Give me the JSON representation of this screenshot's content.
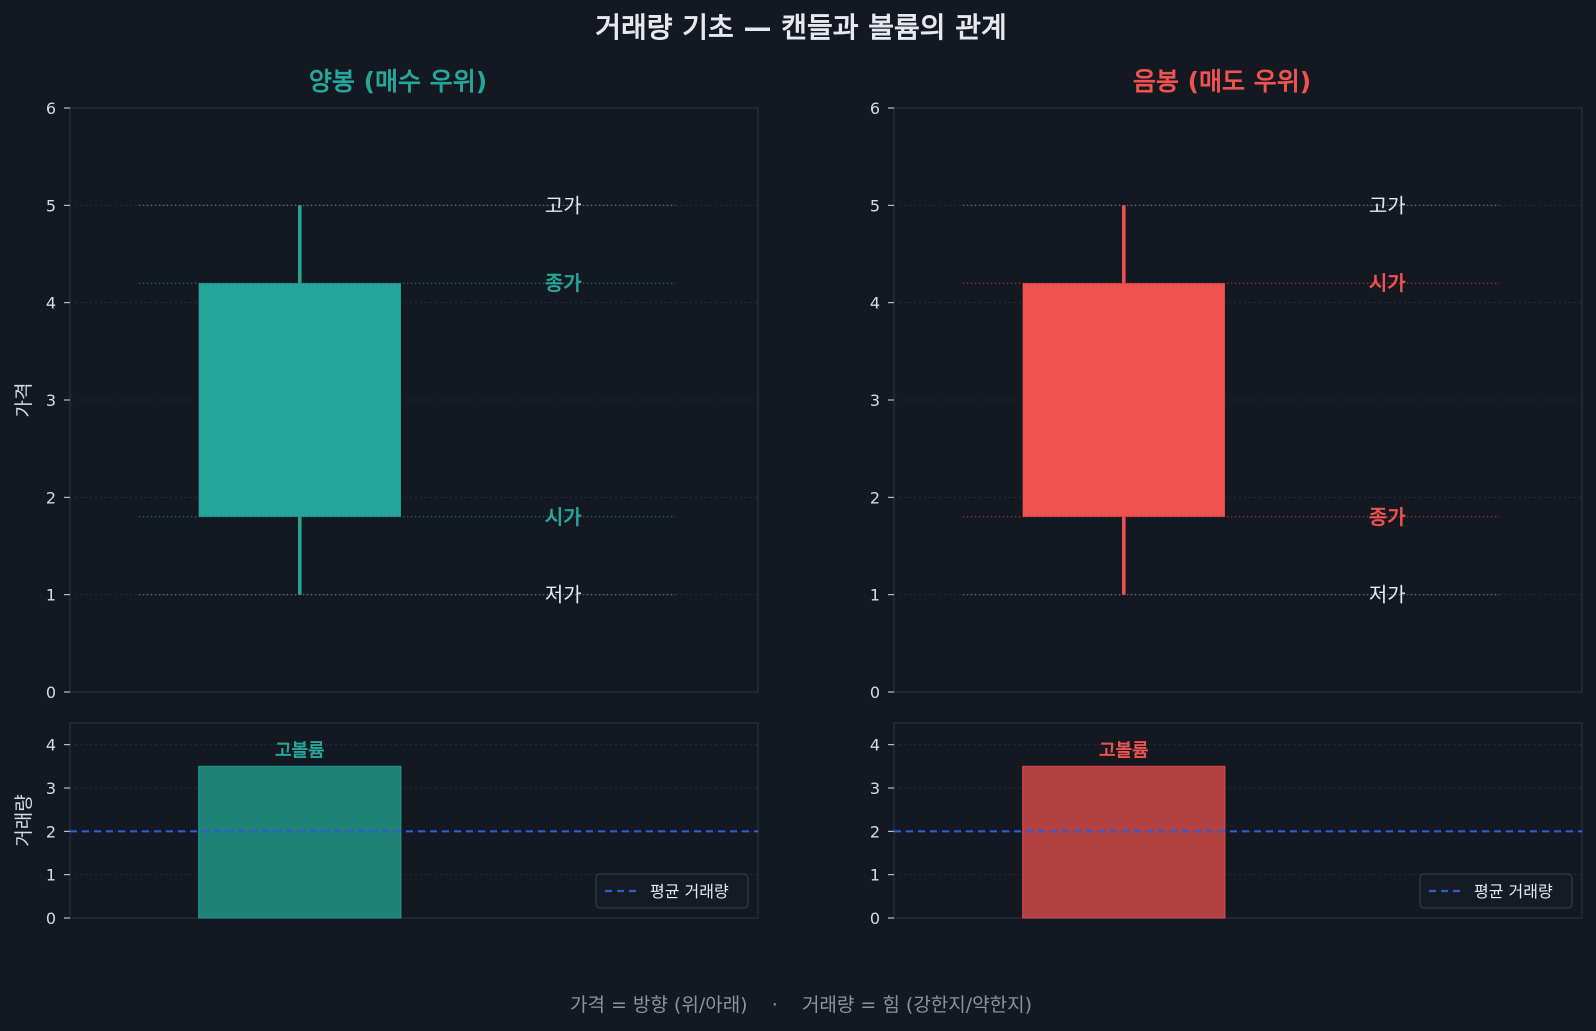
{
  "title": "거래량 기초 — 캔들과 볼륨의 관계",
  "footer": "가격 = 방향 (위/아래)    ·    거래량 = 힘 (강한지/약한지)",
  "colors": {
    "background": "#131821",
    "panel_border": "#2a3140",
    "grid": "#252c38",
    "text": "#e6e9ef",
    "tick_text": "#d8dce4",
    "footer_text": "#8c93a0",
    "bull": "#26a69a",
    "bull_volume": "#1f8177",
    "bear": "#ef5350",
    "bear_volume": "#b34141",
    "average_line": "#2e5bd8",
    "level_dot": "#6f7682"
  },
  "chart_data": [
    {
      "type": "candlestick",
      "title": "양봉 (매수 우위)",
      "color_key": "bull",
      "ylabel": "가격",
      "ylim": [
        0,
        6
      ],
      "yticks": [
        "0",
        "1",
        "2",
        "3",
        "4",
        "5",
        "6"
      ],
      "candle": {
        "open": 1.8,
        "high": 5.0,
        "low": 1.0,
        "close": 4.2
      },
      "level_labels": [
        {
          "label": "고가",
          "value": 5.0,
          "colored": false
        },
        {
          "label": "종가",
          "value": 4.2,
          "colored": true
        },
        {
          "label": "시가",
          "value": 1.8,
          "colored": true
        },
        {
          "label": "저가",
          "value": 1.0,
          "colored": false
        }
      ],
      "volume": {
        "type": "bar",
        "ylabel": "거래량",
        "ylim": [
          0,
          4.5
        ],
        "yticks": [
          "0",
          "1",
          "2",
          "3",
          "4"
        ],
        "value": 3.5,
        "bar_label": "고볼륨",
        "average": 2.0,
        "legend": "평균 거래량",
        "legend_position": "lower-right",
        "volume_color_key": "bull_volume"
      }
    },
    {
      "type": "candlestick",
      "title": "음봉 (매도 우위)",
      "color_key": "bear",
      "ylabel": "",
      "ylim": [
        0,
        6
      ],
      "yticks": [
        "0",
        "1",
        "2",
        "3",
        "4",
        "5",
        "6"
      ],
      "candle": {
        "open": 4.2,
        "high": 5.0,
        "low": 1.0,
        "close": 1.8
      },
      "level_labels": [
        {
          "label": "고가",
          "value": 5.0,
          "colored": false
        },
        {
          "label": "시가",
          "value": 4.2,
          "colored": true
        },
        {
          "label": "종가",
          "value": 1.8,
          "colored": true
        },
        {
          "label": "저가",
          "value": 1.0,
          "colored": false
        }
      ],
      "volume": {
        "type": "bar",
        "ylabel": "",
        "ylim": [
          0,
          4.5
        ],
        "yticks": [
          "0",
          "1",
          "2",
          "3",
          "4"
        ],
        "value": 3.5,
        "bar_label": "고볼륨",
        "average": 2.0,
        "legend": "평균 거래량",
        "legend_position": "lower-right",
        "volume_color_key": "bear_volume"
      }
    }
  ]
}
